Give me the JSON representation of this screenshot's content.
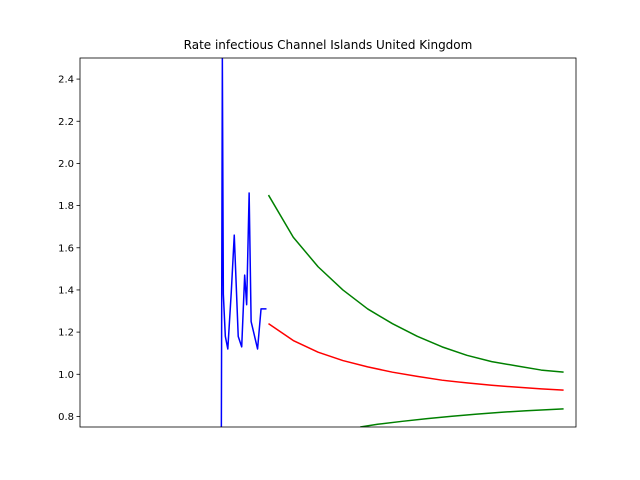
{
  "chart_data": {
    "type": "line",
    "title": "Rate infectious Channel Islands United Kingdom",
    "xlabel": "",
    "ylabel": "",
    "x_ticks_visible": false,
    "ylim": [
      0.75,
      2.5
    ],
    "yticks": [
      0.8,
      1.0,
      1.2,
      1.4,
      1.6,
      1.8,
      2.0,
      2.2,
      2.4
    ],
    "ytick_labels": [
      "0.8",
      "1.0",
      "1.2",
      "1.4",
      "1.6",
      "1.8",
      "2.0",
      "2.2",
      "2.4"
    ],
    "xlim": [
      0,
      100
    ],
    "grid": false,
    "legend": "none",
    "series": [
      {
        "color": "#0000ff",
        "x": [
          28.5,
          28.7,
          28.9,
          29.3,
          29.8,
          30.5,
          31.1,
          31.9,
          32.6,
          33.2,
          33.6,
          34.1,
          34.5,
          35.1,
          35.8,
          36.5,
          37.0,
          37.6
        ],
        "y": [
          0.75,
          2.5,
          1.38,
          1.18,
          1.12,
          1.39,
          1.66,
          1.18,
          1.13,
          1.47,
          1.33,
          1.86,
          1.25,
          1.19,
          1.12,
          1.31,
          1.31,
          1.31
        ]
      },
      {
        "color": "#ff0000",
        "x": [
          38.0,
          43,
          48,
          53,
          58,
          63,
          68,
          73,
          78,
          83,
          88,
          93,
          97.5
        ],
        "y": [
          1.24,
          1.16,
          1.105,
          1.065,
          1.035,
          1.01,
          0.99,
          0.972,
          0.959,
          0.948,
          0.939,
          0.931,
          0.925
        ]
      },
      {
        "color": "#008000",
        "x": [
          38.0,
          43,
          48,
          53,
          58,
          63,
          68,
          73,
          78,
          83,
          88,
          93,
          97.5
        ],
        "y": [
          1.85,
          1.65,
          1.51,
          1.4,
          1.31,
          1.24,
          1.18,
          1.13,
          1.09,
          1.06,
          1.04,
          1.02,
          1.01
        ]
      },
      {
        "color": "#008000",
        "x": [
          56.5,
          60,
          65,
          70,
          75,
          80,
          85,
          90,
          95,
          97.5
        ],
        "y": [
          0.75,
          0.763,
          0.777,
          0.79,
          0.801,
          0.811,
          0.82,
          0.827,
          0.833,
          0.836
        ]
      }
    ]
  }
}
